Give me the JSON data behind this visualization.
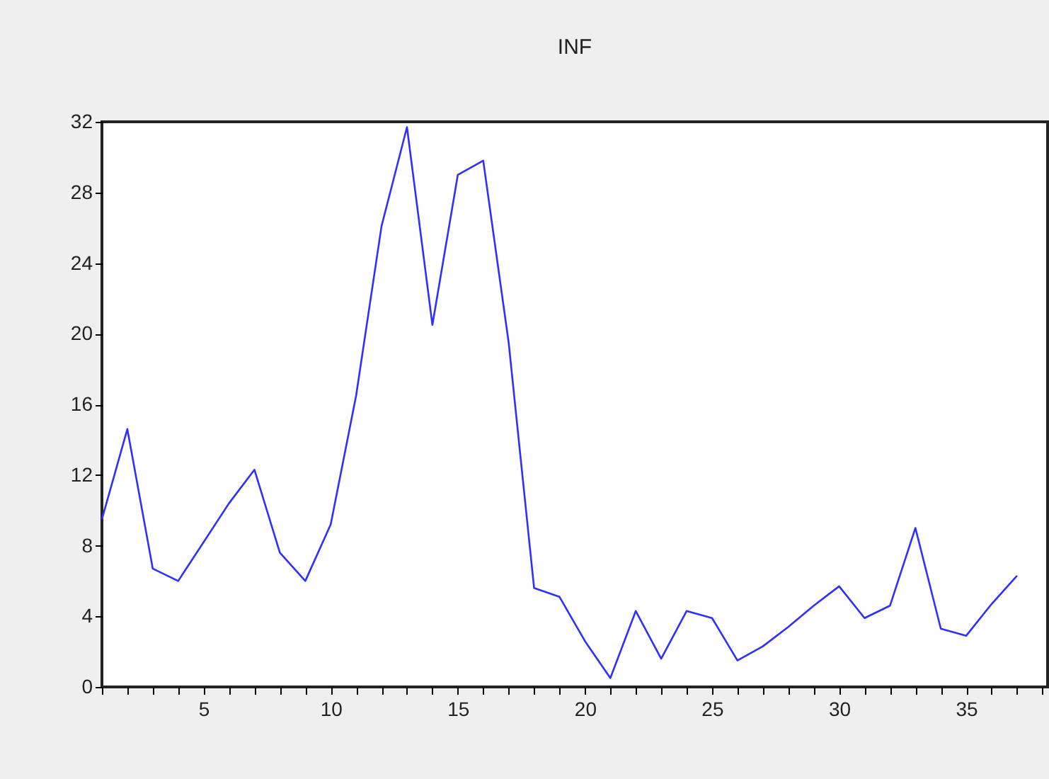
{
  "chart_data": {
    "type": "line",
    "title": "INF",
    "x": [
      1,
      2,
      3,
      4,
      5,
      6,
      7,
      8,
      9,
      10,
      11,
      12,
      13,
      14,
      15,
      16,
      17,
      18,
      19,
      20,
      21,
      22,
      23,
      24,
      25,
      26,
      27,
      28,
      29,
      30,
      31,
      32,
      33,
      34,
      35,
      36,
      37
    ],
    "series": [
      {
        "color": "#2f2fff",
        "values": [
          9.5,
          14.6,
          6.7,
          6.0,
          8.2,
          10.4,
          12.3,
          7.6,
          6.0,
          9.2,
          16.5,
          26.1,
          31.7,
          20.5,
          29.0,
          29.8,
          19.5,
          5.6,
          5.1,
          2.6,
          0.5,
          4.3,
          1.6,
          4.3,
          3.9,
          1.5,
          2.3,
          3.4,
          4.6,
          5.7,
          3.9,
          4.6,
          9.0,
          3.3,
          2.9,
          4.7,
          6.3
        ]
      }
    ],
    "xlim": [
      1,
      38.2
    ],
    "xticks": [
      {
        "value": 1,
        "label": null
      },
      {
        "value": 2,
        "label": null
      },
      {
        "value": 3,
        "label": null
      },
      {
        "value": 4,
        "label": null
      },
      5,
      {
        "value": 6,
        "label": null
      },
      {
        "value": 7,
        "label": null
      },
      {
        "value": 8,
        "label": null
      },
      {
        "value": 9,
        "label": null
      },
      10,
      {
        "value": 11,
        "label": null
      },
      {
        "value": 12,
        "label": null
      },
      {
        "value": 13,
        "label": null
      },
      {
        "value": 14,
        "label": null
      },
      15,
      {
        "value": 16,
        "label": null
      },
      {
        "value": 17,
        "label": null
      },
      {
        "value": 18,
        "label": null
      },
      {
        "value": 19,
        "label": null
      },
      20,
      {
        "value": 21,
        "label": null
      },
      {
        "value": 22,
        "label": null
      },
      {
        "value": 23,
        "label": null
      },
      {
        "value": 24,
        "label": null
      },
      25,
      {
        "value": 26,
        "label": null
      },
      {
        "value": 27,
        "label": null
      },
      {
        "value": 28,
        "label": null
      },
      {
        "value": 29,
        "label": null
      },
      30,
      {
        "value": 31,
        "label": null
      },
      {
        "value": 32,
        "label": null
      },
      {
        "value": 33,
        "label": null
      },
      {
        "value": 34,
        "label": null
      },
      35,
      {
        "value": 36,
        "label": null
      },
      {
        "value": 37,
        "label": null
      },
      {
        "value": 38,
        "label": null
      }
    ],
    "ylim": [
      0,
      32
    ],
    "yticks": [
      0,
      4,
      8,
      12,
      16,
      20,
      24,
      28,
      32
    ],
    "grid": false,
    "marker": "none",
    "line_style": "solid"
  }
}
